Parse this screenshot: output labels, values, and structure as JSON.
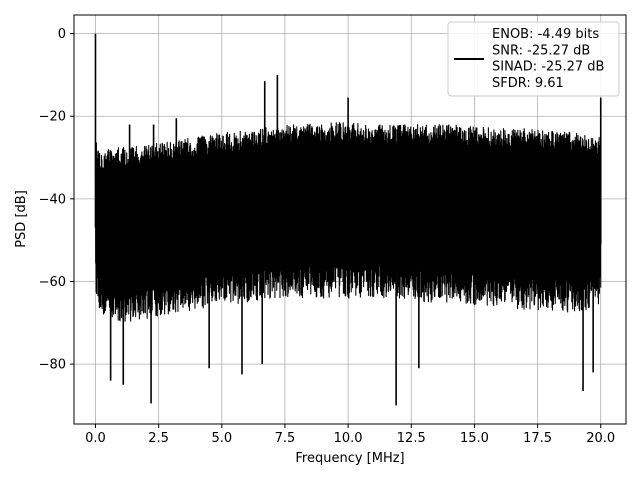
{
  "chart_data": {
    "type": "line",
    "xlabel": "Frequency [MHz]",
    "ylabel": "PSD [dB]",
    "xlim": [
      -0.85,
      21.0
    ],
    "ylim": [
      -94.5,
      4.5
    ],
    "xticks": [
      0.0,
      2.5,
      5.0,
      7.5,
      10.0,
      12.5,
      15.0,
      17.5,
      20.0
    ],
    "xtick_labels": [
      "0.0",
      "2.5",
      "5.0",
      "7.5",
      "10.0",
      "12.5",
      "15.0",
      "17.5",
      "20.0"
    ],
    "yticks": [
      0,
      -20,
      -40,
      -60,
      -80
    ],
    "ytick_labels": [
      "0",
      "−20",
      "−40",
      "−60",
      "−80"
    ],
    "grid": true,
    "legend_position": "top-right",
    "series": [
      {
        "name": "ENOB: -4.49 bits\nSNR: -25.27 dB\nSINAD: -25.27 dB\nSFDR: 9.61",
        "color": "#000000",
        "envelope": {
          "x": [
            0.0,
            0.2,
            1.0,
            2.0,
            3.0,
            4.0,
            5.0,
            6.0,
            7.0,
            8.0,
            9.0,
            10.0,
            11.0,
            12.0,
            13.0,
            14.0,
            15.0,
            16.0,
            17.0,
            18.0,
            19.0,
            20.0
          ],
          "upper": [
            -26,
            -28,
            -27.5,
            -27,
            -26,
            -25,
            -24,
            -23.5,
            -22.5,
            -22,
            -21.5,
            -21.5,
            -22,
            -22,
            -22,
            -22,
            -22.5,
            -23,
            -23,
            -23.5,
            -24,
            -25
          ],
          "lower": [
            -62,
            -68,
            -70,
            -69,
            -68,
            -67,
            -66,
            -65,
            -64,
            -64,
            -64,
            -64,
            -64,
            -64,
            -65,
            -65,
            -66,
            -66,
            -67,
            -67,
            -68,
            -66
          ]
        },
        "peaks": [
          {
            "x": 0.0,
            "y": 0.0
          },
          {
            "x": 1.35,
            "y": -22.0
          },
          {
            "x": 2.3,
            "y": -22.0
          },
          {
            "x": 3.2,
            "y": -20.5
          },
          {
            "x": 6.7,
            "y": -11.5
          },
          {
            "x": 7.2,
            "y": -10.0
          },
          {
            "x": 10.0,
            "y": -15.5
          },
          {
            "x": 20.0,
            "y": -15.5
          }
        ],
        "dips": [
          {
            "x": 0.6,
            "y": -84.0
          },
          {
            "x": 1.1,
            "y": -85.0
          },
          {
            "x": 2.2,
            "y": -89.5
          },
          {
            "x": 4.5,
            "y": -81.0
          },
          {
            "x": 5.8,
            "y": -82.5
          },
          {
            "x": 6.6,
            "y": -80.0
          },
          {
            "x": 11.9,
            "y": -90.0
          },
          {
            "x": 12.8,
            "y": -81.0
          },
          {
            "x": 19.3,
            "y": -86.5
          },
          {
            "x": 19.7,
            "y": -82.0
          }
        ]
      }
    ]
  }
}
